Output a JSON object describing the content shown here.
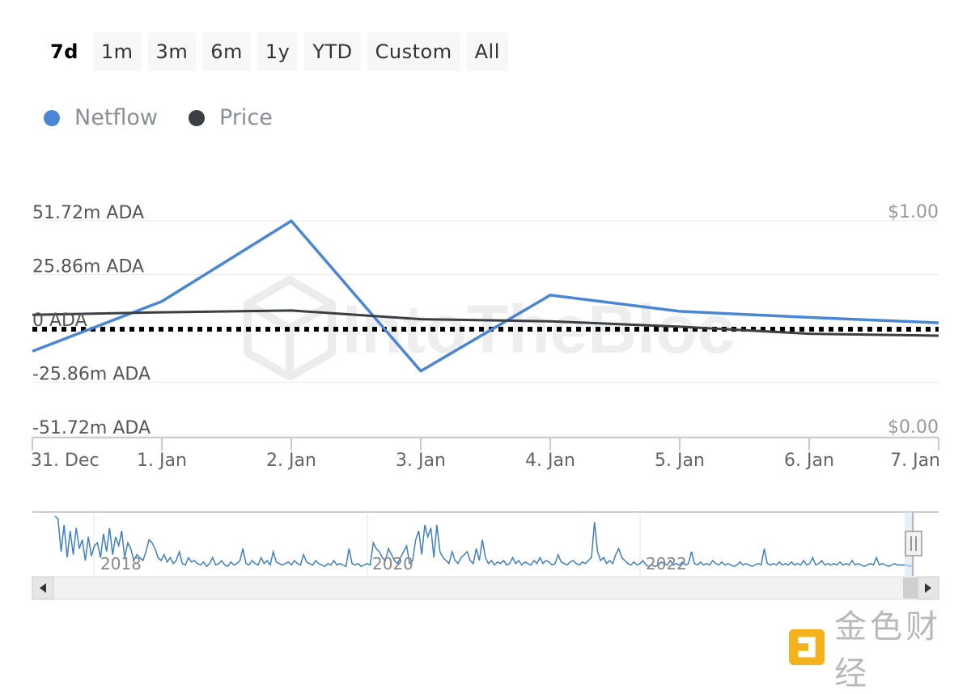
{
  "range_buttons": [
    {
      "label": "7d",
      "active": true
    },
    {
      "label": "1m",
      "active": false
    },
    {
      "label": "3m",
      "active": false
    },
    {
      "label": "6m",
      "active": false
    },
    {
      "label": "1y",
      "active": false
    },
    {
      "label": "YTD",
      "active": false
    },
    {
      "label": "Custom",
      "active": false
    },
    {
      "label": "All",
      "active": false
    }
  ],
  "legend": [
    {
      "label": "Netflow",
      "color": "#4a86d4"
    },
    {
      "label": "Price",
      "color": "#3a3f44"
    }
  ],
  "watermark": "IntoTheBlock",
  "brand": {
    "name": "金色财经",
    "logo_icon": "jinse-logo-icon",
    "logo_color": "#f4b21c"
  },
  "chart_data": {
    "type": "line",
    "x": [
      "31. Dec",
      "1. Jan",
      "2. Jan",
      "3. Jan",
      "4. Jan",
      "5. Jan",
      "6. Jan",
      "7. Jan"
    ],
    "series": [
      {
        "name": "Netflow",
        "axis": "left",
        "color": "#4a86d4",
        "points": [
          [
            0,
            -11.0
          ],
          [
            1,
            13.0
          ],
          [
            2,
            51.7
          ],
          [
            3,
            -20.5
          ],
          [
            4,
            16.0
          ],
          [
            5,
            8.2
          ],
          [
            6,
            5.3
          ],
          [
            7,
            2.7
          ]
        ]
      },
      {
        "name": "Price",
        "axis": "right",
        "color": "#3a3f44",
        "points": [
          [
            0,
            0.563
          ],
          [
            1,
            0.575
          ],
          [
            2,
            0.583
          ],
          [
            3,
            0.543
          ],
          [
            4,
            0.533
          ],
          [
            5,
            0.508
          ],
          [
            6,
            0.475
          ],
          [
            7,
            0.466
          ]
        ]
      }
    ],
    "y_left": {
      "min": -51.72,
      "max": 51.72,
      "ticks": [
        51.72,
        25.86,
        0,
        -25.86,
        -51.72
      ],
      "tick_labels": [
        "51.72m ADA",
        "25.86m ADA",
        "0 ADA",
        "-25.86m ADA",
        "-51.72m ADA"
      ]
    },
    "y_right": {
      "min": 0,
      "max": 1,
      "tick_labels": [
        "$1.00",
        "$0.00"
      ]
    },
    "zero_line": "dotted",
    "grid": true,
    "navigator": {
      "year_labels": [
        "2018",
        "2020",
        "2022"
      ],
      "series": [
        36,
        34,
        12,
        30,
        8,
        26,
        10,
        28,
        14,
        20,
        6,
        22,
        9,
        16,
        18,
        8,
        24,
        12,
        28,
        10,
        22,
        16,
        26,
        8,
        18,
        14,
        6,
        10,
        8,
        6,
        12,
        20,
        18,
        14,
        8,
        6,
        10,
        5,
        8,
        4,
        6,
        12,
        4,
        3,
        8,
        5,
        6,
        4,
        3,
        5,
        2,
        4,
        8,
        3,
        4,
        6,
        3,
        2,
        5,
        3,
        4,
        6,
        14,
        4,
        3,
        6,
        4,
        3,
        8,
        4,
        6,
        3,
        12,
        5,
        4,
        3,
        4,
        5,
        3,
        6,
        4,
        3,
        10,
        5,
        4,
        3,
        6,
        4,
        3,
        2,
        4,
        3,
        6,
        3,
        4,
        3,
        2,
        14,
        4,
        3,
        4,
        2,
        3,
        4,
        3,
        18,
        14,
        12,
        8,
        6,
        14,
        10,
        6,
        4,
        8,
        12,
        16,
        4,
        6,
        20,
        26,
        10,
        30,
        22,
        28,
        8,
        30,
        12,
        8,
        6,
        4,
        12,
        6,
        4,
        8,
        10,
        12,
        6,
        4,
        14,
        6,
        20,
        8,
        4,
        6,
        3,
        5,
        4,
        6,
        3,
        4,
        8,
        4,
        6,
        3,
        5,
        4,
        3,
        6,
        4,
        8,
        4,
        6,
        5,
        3,
        4,
        10,
        5,
        4,
        3,
        5,
        6,
        4,
        3,
        5,
        4,
        6,
        8,
        32,
        12,
        6,
        8,
        4,
        6,
        4,
        10,
        14,
        8,
        6,
        4,
        3,
        5,
        3,
        4,
        6,
        3,
        2,
        3,
        2,
        3,
        5,
        4,
        3,
        6,
        3,
        4,
        3,
        5,
        3,
        4,
        12,
        4,
        3,
        5,
        3,
        4,
        3,
        6,
        4,
        3,
        5,
        3,
        4,
        3,
        2,
        3,
        5,
        3,
        4,
        3,
        2,
        3,
        4,
        3,
        14,
        4,
        3,
        4,
        3,
        5,
        3,
        4,
        3,
        5,
        3,
        4,
        3,
        6,
        3,
        4,
        8,
        3,
        4,
        6,
        3,
        4,
        3,
        4,
        3,
        5,
        3,
        4,
        3,
        6,
        3,
        4,
        3,
        2,
        3,
        4,
        3,
        8,
        3,
        4,
        3,
        2,
        3,
        4,
        3,
        3,
        3,
        3,
        2,
        3
      ]
    }
  }
}
